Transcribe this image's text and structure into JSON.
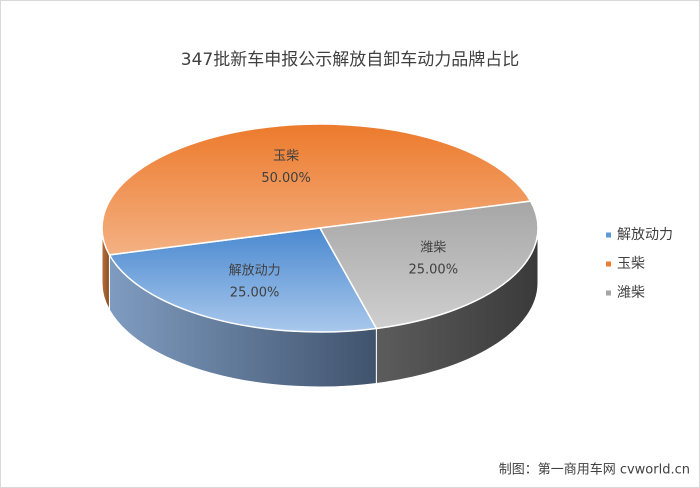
{
  "chart_data": {
    "type": "pie3d",
    "title": "347批新车申报公示解放自卸车动力品牌占比",
    "categories": [
      "解放动力",
      "玉柴",
      "潍柴"
    ],
    "values": [
      25,
      50,
      25
    ],
    "value_labels": [
      "25.00%",
      "50.00%",
      "25.00%"
    ],
    "colors": [
      "#5b9bd5",
      "#ed7d31",
      "#a5a5a5"
    ],
    "legend": "right"
  },
  "footer": "制图：第一商用车网 cvworld.cn"
}
